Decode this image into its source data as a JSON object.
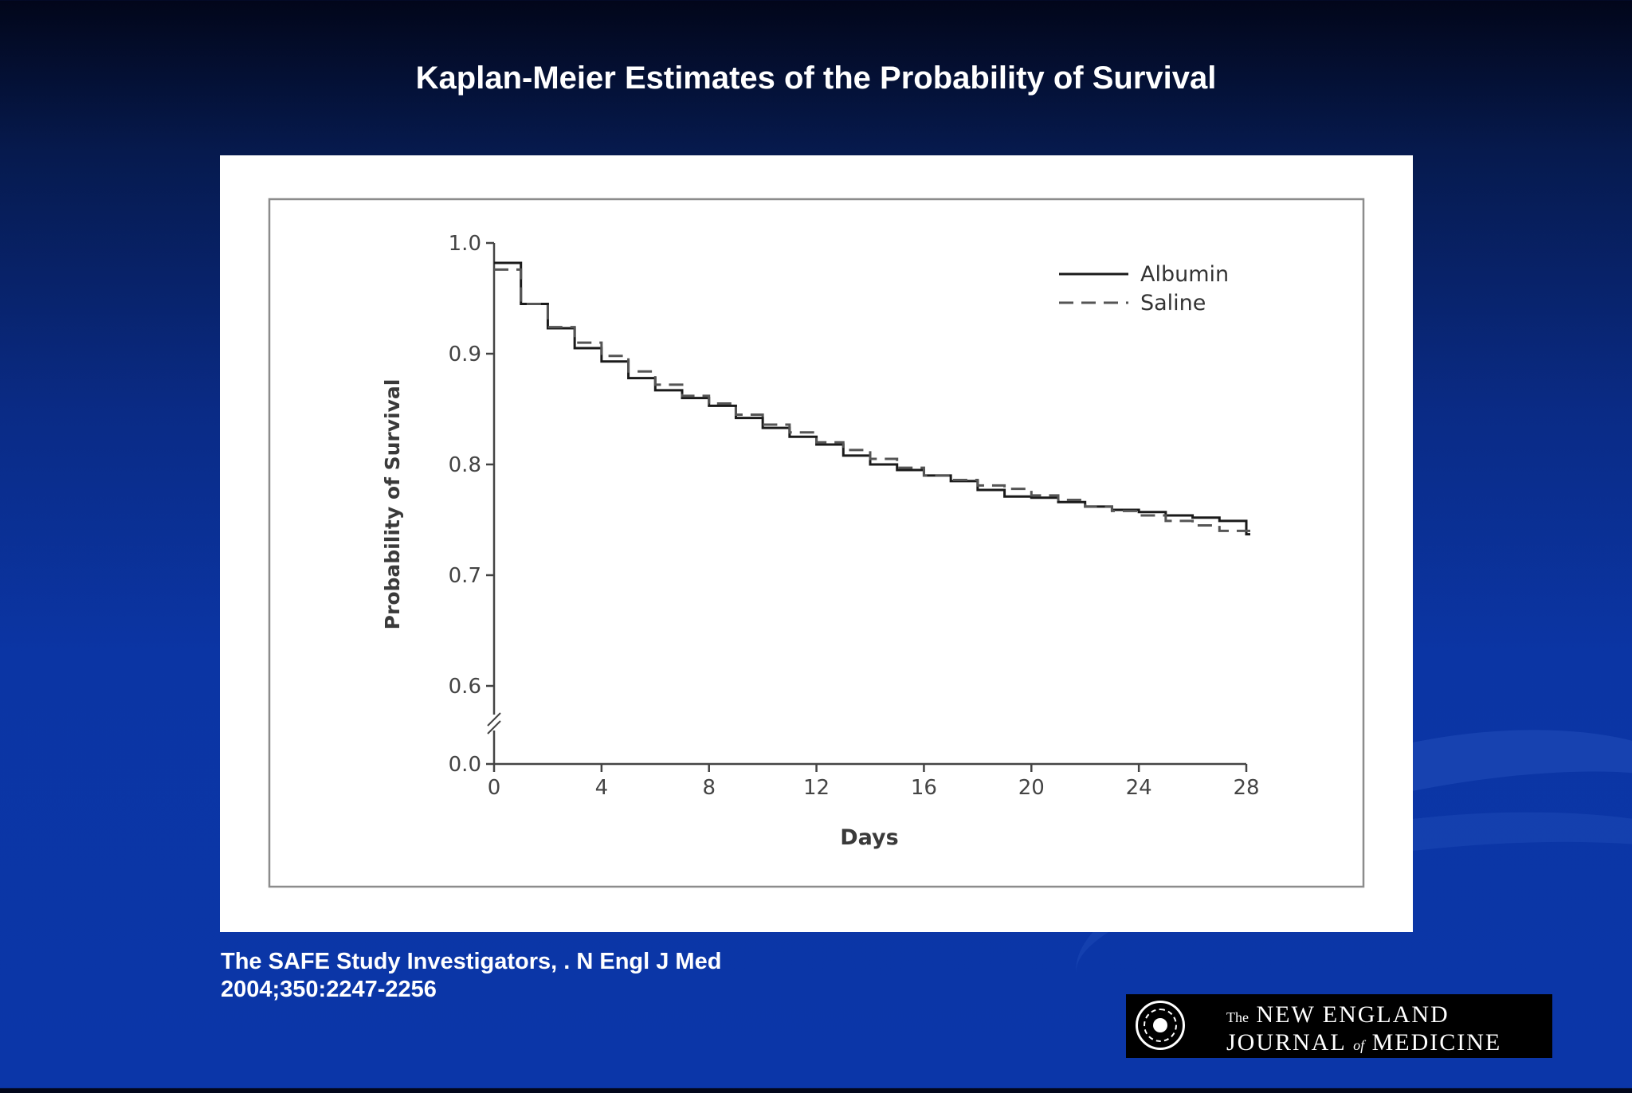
{
  "slide": {
    "title": "Kaplan-Meier Estimates of the Probability of Survival",
    "citation_line1": "The SAFE Study Investigators, . N Engl J Med",
    "citation_line2": "2004;350:2247-2256"
  },
  "logo": {
    "the": "The",
    "line1": "NEW ENGLAND",
    "journal": "JOURNAL",
    "of": "of",
    "medicine": "MEDICINE"
  },
  "colors": {
    "background": "#0b35a4",
    "albumin": "#1a1a1a",
    "saline": "#555555"
  },
  "chart_data": {
    "type": "line",
    "step": true,
    "title": "",
    "xlabel": "Days",
    "ylabel": "Probability of Survival",
    "xlim": [
      0,
      28
    ],
    "x_ticks": [
      0,
      4,
      8,
      12,
      16,
      20,
      24,
      28
    ],
    "x_tick_labels": [
      "0",
      "4",
      "8",
      "12",
      "16",
      "20",
      "24",
      "28"
    ],
    "y_ticks": [
      0.0,
      0.6,
      0.7,
      0.8,
      0.9,
      1.0
    ],
    "y_tick_labels": [
      "0.0",
      "0.6",
      "0.7",
      "0.8",
      "0.9",
      "1.0"
    ],
    "y_axis_break": [
      0.0,
      0.6
    ],
    "ylim": [
      0.0,
      1.0
    ],
    "legend_position": "top-right",
    "grid": false,
    "series": [
      {
        "name": "Albumin",
        "style": "solid",
        "x": [
          0,
          1,
          2,
          3,
          4,
          5,
          6,
          7,
          8,
          9,
          10,
          11,
          12,
          13,
          14,
          15,
          16,
          17,
          18,
          19,
          20,
          21,
          22,
          23,
          24,
          25,
          26,
          27,
          28
        ],
        "y": [
          0.982,
          0.945,
          0.923,
          0.905,
          0.893,
          0.878,
          0.867,
          0.86,
          0.853,
          0.842,
          0.833,
          0.825,
          0.818,
          0.808,
          0.8,
          0.795,
          0.79,
          0.785,
          0.777,
          0.771,
          0.77,
          0.766,
          0.762,
          0.759,
          0.757,
          0.754,
          0.752,
          0.749,
          0.737
        ]
      },
      {
        "name": "Saline",
        "style": "dashed",
        "x": [
          0,
          1,
          2,
          3,
          4,
          5,
          6,
          7,
          8,
          9,
          10,
          11,
          12,
          13,
          14,
          15,
          16,
          17,
          18,
          19,
          20,
          21,
          22,
          23,
          24,
          25,
          26,
          27,
          28
        ],
        "y": [
          0.976,
          0.945,
          0.924,
          0.91,
          0.898,
          0.884,
          0.872,
          0.862,
          0.855,
          0.845,
          0.836,
          0.829,
          0.82,
          0.813,
          0.805,
          0.797,
          0.79,
          0.786,
          0.781,
          0.778,
          0.772,
          0.768,
          0.762,
          0.758,
          0.754,
          0.749,
          0.745,
          0.74,
          0.74
        ]
      }
    ]
  }
}
